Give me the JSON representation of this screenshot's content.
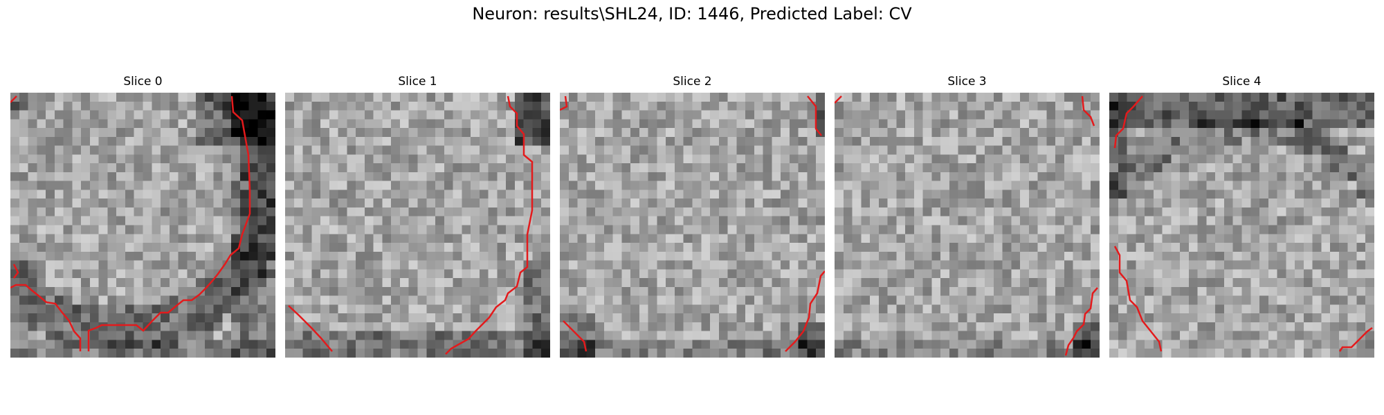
{
  "figure": {
    "title": "Neuron: results\\SHL24, ID: 1446, Predicted Label: CV"
  },
  "slices": [
    {
      "title": "Slice 0",
      "dark_region": "right arc + bottom",
      "contour_color": "#e31a1c"
    },
    {
      "title": "Slice 1",
      "dark_region": "top-right corner + bottom",
      "contour_color": "#e31a1c"
    },
    {
      "title": "Slice 2",
      "dark_region": "bottom-left + bottom-right",
      "contour_color": "#e31a1c"
    },
    {
      "title": "Slice 3",
      "dark_region": "bottom-right corner",
      "contour_color": "#e31a1c"
    },
    {
      "title": "Slice 4",
      "dark_region": "top arc band",
      "contour_color": "#e31a1c"
    }
  ],
  "colormap": "gray"
}
